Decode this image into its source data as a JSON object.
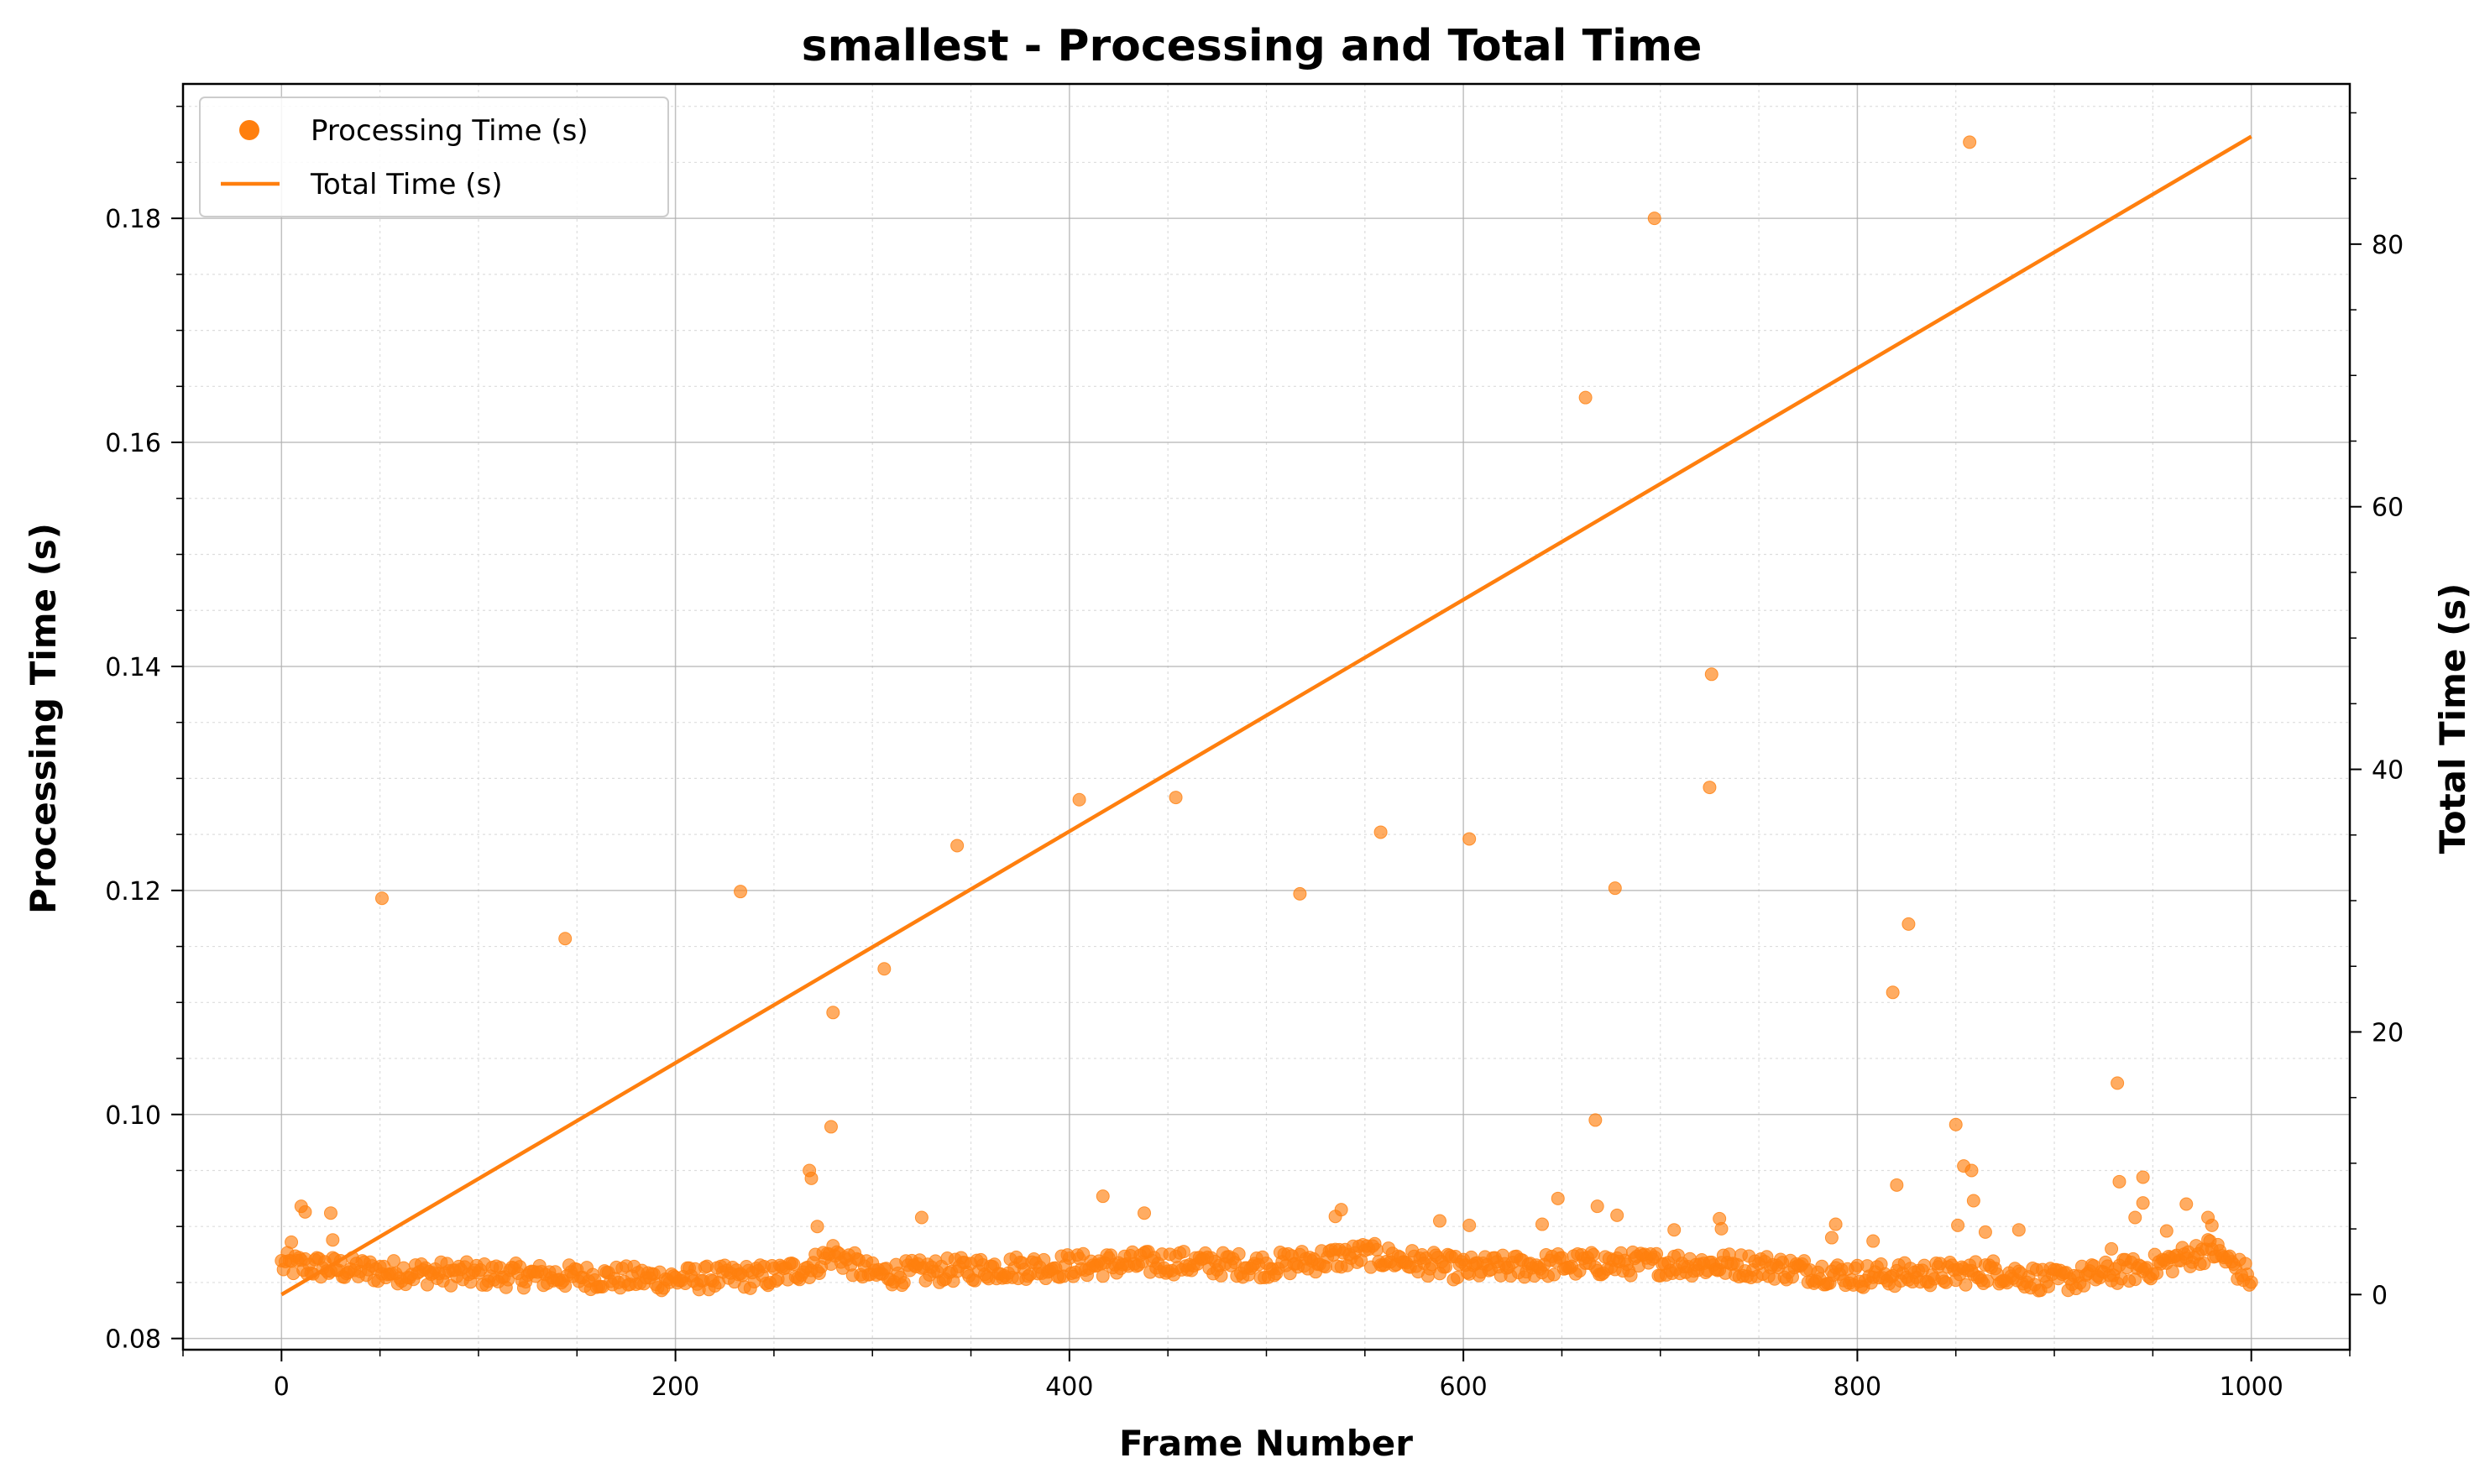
{
  "chart_data": {
    "type": "scatter",
    "title": "smallest - Processing and Total Time",
    "xlabel": "Frame Number",
    "ylabel_left": "Processing Time (s)",
    "ylabel_right": "Total Time (s)",
    "xlim": [
      -50,
      1050
    ],
    "ylim_left": [
      0.079,
      0.192
    ],
    "ylim_right": [
      -4.2,
      92.2
    ],
    "x_ticks": [
      0,
      200,
      400,
      600,
      800,
      1000
    ],
    "y_left_ticks": [
      0.08,
      0.1,
      0.12,
      0.14,
      0.16,
      0.18
    ],
    "y_right_ticks": [
      0,
      20,
      40,
      60,
      80
    ],
    "x_tick_labels": [
      "0",
      "200",
      "400",
      "600",
      "800",
      "1000"
    ],
    "y_left_tick_labels": [
      "0.08",
      "0.10",
      "0.12",
      "0.14",
      "0.16",
      "0.18"
    ],
    "y_right_tick_labels": [
      "0",
      "20",
      "40",
      "60",
      "80"
    ],
    "grid": true,
    "legend_position": "top-left",
    "color": "#ff7f0e",
    "series": [
      {
        "name": "Processing Time (s)",
        "kind": "scatter",
        "axis": "left",
        "baseline": {
          "x": [
            0,
            50,
            100,
            150,
            200,
            250,
            270,
            280,
            300,
            350,
            400,
            450,
            500,
            550,
            600,
            650,
            700,
            750,
            800,
            850,
            870,
            900,
            950,
            980,
            1000
          ],
          "y": [
            0.0866,
            0.086,
            0.0857,
            0.0855,
            0.0853,
            0.0856,
            0.0865,
            0.0876,
            0.0857,
            0.0862,
            0.0865,
            0.0868,
            0.0865,
            0.0875,
            0.0862,
            0.0866,
            0.0867,
            0.0865,
            0.0856,
            0.0858,
            0.086,
            0.0851,
            0.0864,
            0.088,
            0.0853
          ]
        },
        "outliers": [
          [
            5,
            0.0886
          ],
          [
            10,
            0.0918
          ],
          [
            12,
            0.0913
          ],
          [
            25,
            0.0912
          ],
          [
            26,
            0.0888
          ],
          [
            51,
            0.1193
          ],
          [
            144,
            0.1157
          ],
          [
            233,
            0.1199
          ],
          [
            268,
            0.095
          ],
          [
            269,
            0.0943
          ],
          [
            272,
            0.09
          ],
          [
            279,
            0.0989
          ],
          [
            280,
            0.1091
          ],
          [
            306,
            0.113
          ],
          [
            325,
            0.0908
          ],
          [
            343,
            0.124
          ],
          [
            405,
            0.1281
          ],
          [
            417,
            0.0927
          ],
          [
            438,
            0.0912
          ],
          [
            454,
            0.1283
          ],
          [
            517,
            0.1197
          ],
          [
            535,
            0.0909
          ],
          [
            538,
            0.0915
          ],
          [
            558,
            0.1252
          ],
          [
            588,
            0.0905
          ],
          [
            603,
            0.0901
          ],
          [
            603,
            0.1246
          ],
          [
            640,
            0.0902
          ],
          [
            648,
            0.0925
          ],
          [
            662,
            0.164
          ],
          [
            667,
            0.0995
          ],
          [
            668,
            0.0918
          ],
          [
            677,
            0.1202
          ],
          [
            678,
            0.091
          ],
          [
            697,
            0.18
          ],
          [
            707,
            0.0897
          ],
          [
            725,
            0.1292
          ],
          [
            726,
            0.1393
          ],
          [
            730,
            0.0907
          ],
          [
            731,
            0.0898
          ],
          [
            787,
            0.089
          ],
          [
            789,
            0.0902
          ],
          [
            808,
            0.0887
          ],
          [
            818,
            0.1109
          ],
          [
            820,
            0.0937
          ],
          [
            826,
            0.117
          ],
          [
            850,
            0.0991
          ],
          [
            851,
            0.0901
          ],
          [
            854,
            0.0954
          ],
          [
            857,
            0.1868
          ],
          [
            858,
            0.095
          ],
          [
            859,
            0.0923
          ],
          [
            865,
            0.0895
          ],
          [
            882,
            0.0897
          ],
          [
            929,
            0.088
          ],
          [
            932,
            0.1028
          ],
          [
            933,
            0.094
          ],
          [
            941,
            0.0908
          ],
          [
            945,
            0.0944
          ],
          [
            945,
            0.0921
          ],
          [
            957,
            0.0896
          ],
          [
            967,
            0.092
          ],
          [
            978,
            0.0908
          ],
          [
            980,
            0.0901
          ]
        ]
      },
      {
        "name": "Total Time (s)",
        "kind": "line",
        "axis": "right",
        "x": [
          0,
          1000
        ],
        "y": [
          0,
          88.2
        ]
      }
    ]
  }
}
